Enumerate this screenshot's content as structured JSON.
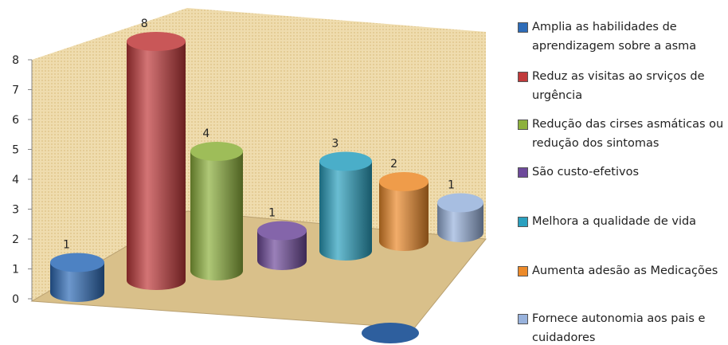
{
  "chart_data": {
    "type": "cylinder3d",
    "ylim": [
      0,
      8
    ],
    "yticks": [
      0,
      1,
      2,
      3,
      4,
      5,
      6,
      7,
      8
    ],
    "series": [
      {
        "name": "Amplia as habilidades de aprendizagem sobre a asma",
        "color": "#2e6cb8",
        "values": [
          1
        ]
      },
      {
        "name": "Reduz as visitas ao srviços de urgência",
        "color": "#c0393a",
        "values": [
          8
        ]
      },
      {
        "name": "Redução das cirses asmáticas ou redução dos sintomas",
        "color": "#8db13c",
        "values": [
          4
        ]
      },
      {
        "name": "São custo-efetivos",
        "color": "#6e4a9b",
        "values": [
          1
        ]
      },
      {
        "name": "Melhora a qualidade de vida",
        "color": "#2aa0bf",
        "values": [
          3
        ]
      },
      {
        "name": "Aumenta adesão as Medicações",
        "color": "#ec8a2a",
        "values": [
          2
        ]
      },
      {
        "name": "Fornece autonomia aos pais e cuidadores",
        "color": "#98b2dc",
        "values": [
          1
        ]
      }
    ]
  }
}
